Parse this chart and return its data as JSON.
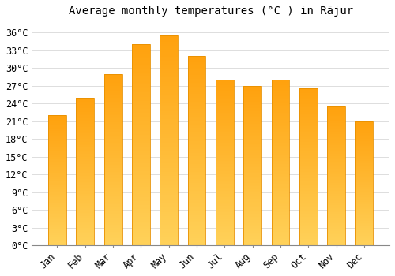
{
  "title": "Average monthly temperatures (°C ) in Rājur",
  "months": [
    "Jan",
    "Feb",
    "Mar",
    "Apr",
    "May",
    "Jun",
    "Jul",
    "Aug",
    "Sep",
    "Oct",
    "Nov",
    "Dec"
  ],
  "values": [
    22,
    25,
    29,
    34,
    35.5,
    32,
    28,
    27,
    28,
    26.5,
    23.5,
    21
  ],
  "bar_color_bottom": "#FFC040",
  "bar_color_top": "#FFA000",
  "bar_edge_color": "#E89000",
  "background_color": "#FFFFFF",
  "plot_bg_color": "#FFFFFF",
  "grid_color": "#DDDDDD",
  "yticks": [
    0,
    3,
    6,
    9,
    12,
    15,
    18,
    21,
    24,
    27,
    30,
    33,
    36
  ],
  "ylim": [
    0,
    38
  ],
  "title_fontsize": 10,
  "tick_fontsize": 8.5,
  "bar_width": 0.65
}
